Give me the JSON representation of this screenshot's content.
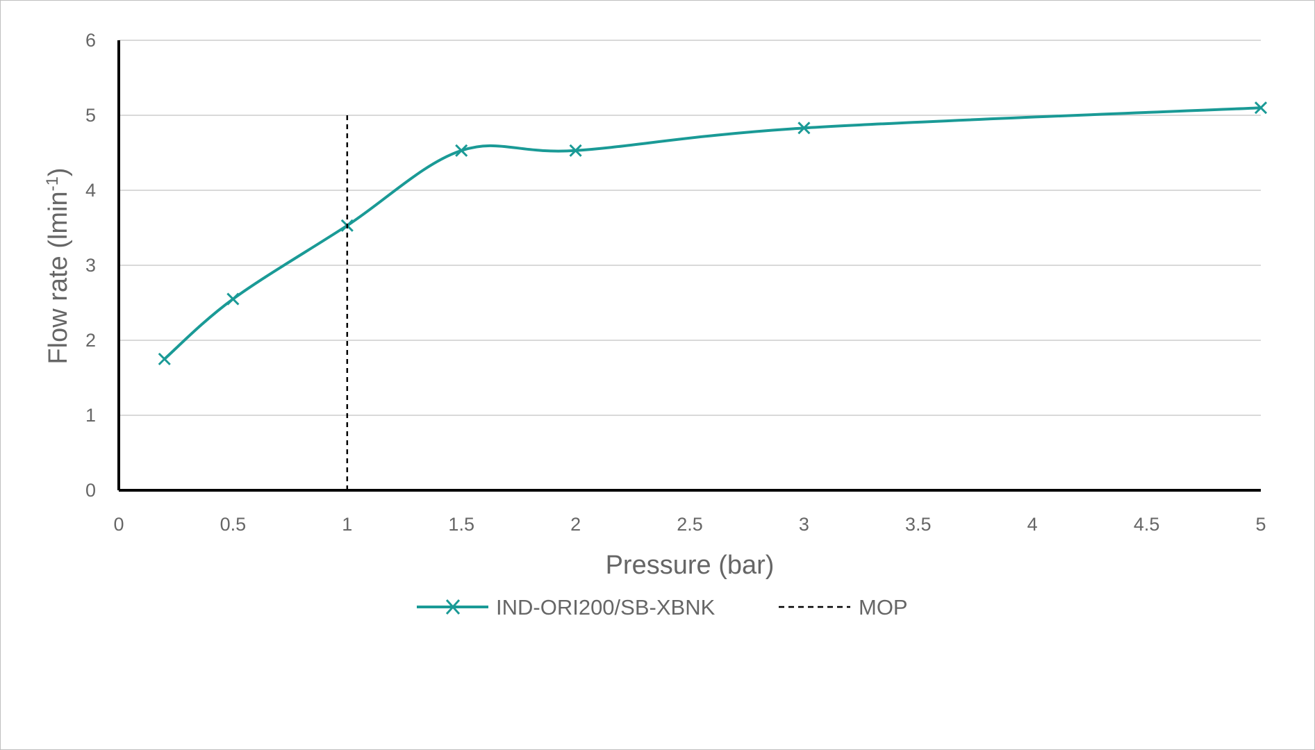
{
  "chart_data": {
    "type": "line",
    "title": "",
    "xlabel": "Pressure (bar)",
    "ylabel": {
      "prefix": "Flow rate (lmin",
      "superscript": "-1",
      "suffix": ")"
    },
    "xlim": [
      0,
      5
    ],
    "ylim": [
      0,
      6
    ],
    "x_ticks": [
      "0",
      "0.5",
      "1",
      "1.5",
      "2",
      "2.5",
      "3",
      "3.5",
      "4",
      "4.5",
      "5"
    ],
    "y_ticks": [
      "0",
      "1",
      "2",
      "3",
      "4",
      "5",
      "6"
    ],
    "grid": "horizontal",
    "legend_position": "bottom",
    "series": [
      {
        "name": "IND-ORI200/SB-XBNK",
        "color": "#1a9a96",
        "marker": "x",
        "smooth": true,
        "x": [
          0.2,
          0.5,
          1,
          1.5,
          2,
          3,
          5
        ],
        "y": [
          1.75,
          2.55,
          3.53,
          4.53,
          4.53,
          4.83,
          5.1
        ]
      },
      {
        "name": "MOP",
        "color": "#000000",
        "dashed": true,
        "x": [
          1,
          1
        ],
        "y": [
          0,
          5.05
        ]
      }
    ]
  }
}
